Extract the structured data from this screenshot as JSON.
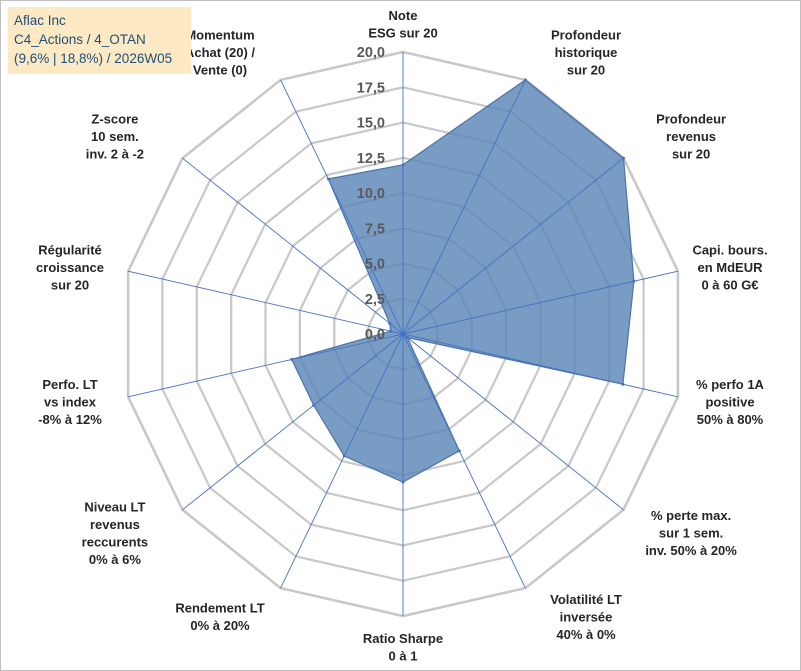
{
  "title_box": {
    "line1": "Aflac Inc",
    "line2": "C4_Actions / 4_OTAN",
    "line3": "(9,6% | 18,8%) / 2026W05"
  },
  "colors": {
    "fill": "#5b86b8",
    "stroke": "#4a74a8",
    "spoke": "#4472c4",
    "grid": "#c8c8c8",
    "title_bg": "#fde9c3",
    "title_text": "#1f4e79"
  },
  "chart_data": {
    "type": "radar",
    "r_min": 0,
    "r_max": 20,
    "tick_step": 2.5,
    "tick_labels": [
      "0,0",
      "2,5",
      "5,0",
      "7,5",
      "10,0",
      "12,5",
      "15,0",
      "17,5",
      "20,0"
    ],
    "axes": [
      {
        "lines": [
          "Note",
          "ESG sur 20"
        ],
        "value": 12.0
      },
      {
        "lines": [
          "Profondeur",
          "historique",
          "sur 20"
        ],
        "value": 20.0
      },
      {
        "lines": [
          "Profondeur",
          "revenus",
          "sur 20"
        ],
        "value": 20.0
      },
      {
        "lines": [
          "Capi. bours.",
          "en MdEUR",
          "0 à 60 G€"
        ],
        "value": 16.8
      },
      {
        "lines": [
          "% perfo 1A",
          "positive",
          "50% à 80%"
        ],
        "value": 16.0
      },
      {
        "lines": [
          "% perte max.",
          "sur 1 sem.",
          "inv. 50% à 20%"
        ],
        "value": 0.4
      },
      {
        "lines": [
          "Volatilité LT",
          "inversée",
          "40% à 0%"
        ],
        "value": 9.2
      },
      {
        "lines": [
          "Ratio Sharpe",
          "0 à 1"
        ],
        "value": 10.5
      },
      {
        "lines": [
          "Rendement LT",
          "0% à 20%"
        ],
        "value": 9.6
      },
      {
        "lines": [
          "Niveau LT",
          "revenus",
          "reccurents",
          "0% à 6%"
        ],
        "value": 8.1
      },
      {
        "lines": [
          "Perfo. LT",
          "vs index",
          "-8% à 12%"
        ],
        "value": 8.1
      },
      {
        "lines": [
          "Régularité",
          "croissance",
          "sur 20"
        ],
        "value": 0.9
      },
      {
        "lines": [
          "Z-score",
          "10 sem.",
          "inv. 2 à -2"
        ],
        "value": 1.2
      },
      {
        "lines": [
          "Momentum",
          "Achat (20) /",
          "Vente (0)"
        ],
        "value": 12.2
      }
    ]
  }
}
